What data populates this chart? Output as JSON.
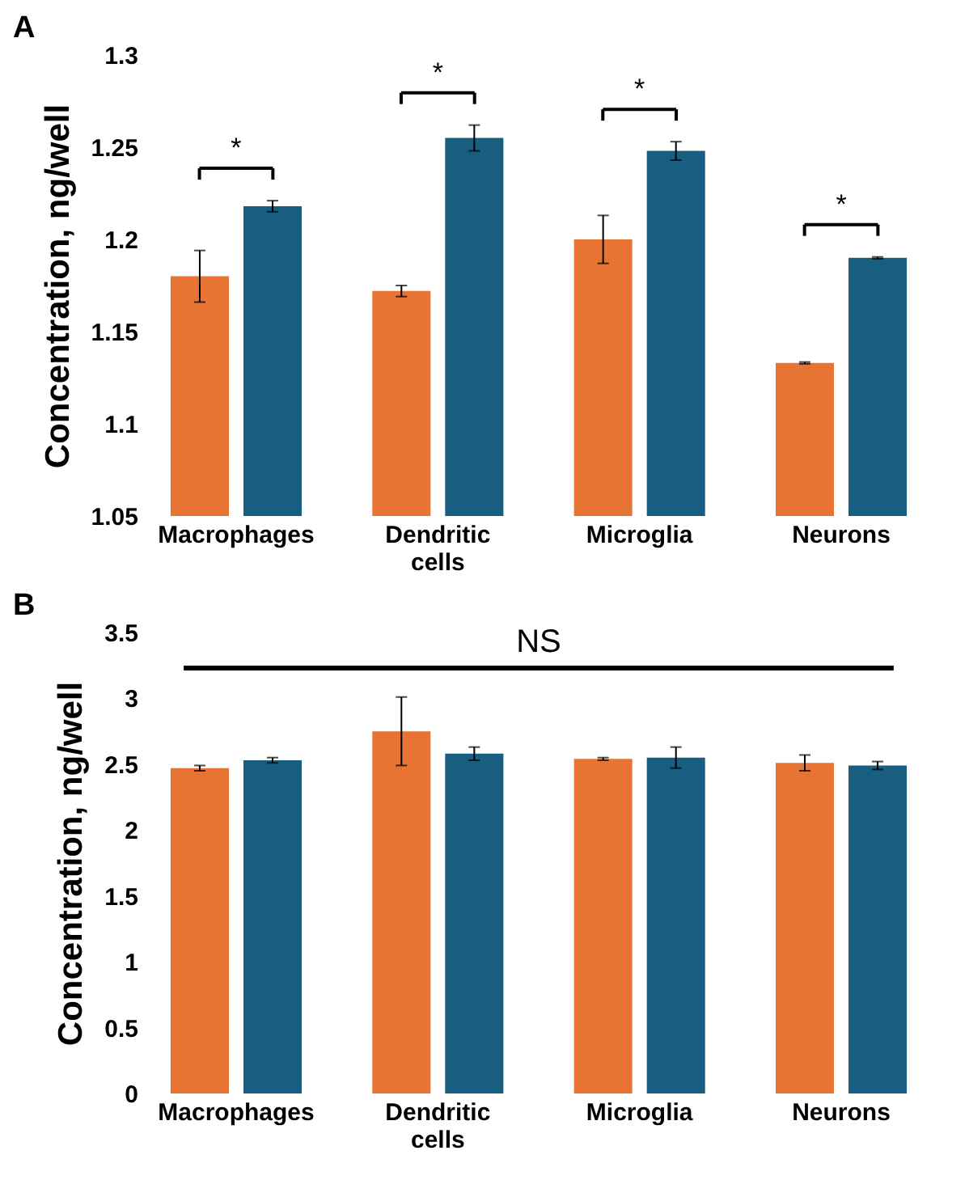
{
  "chart_data": [
    {
      "type": "bar",
      "title": "A",
      "ylabel": "Concentration, ng/well",
      "categories": [
        "Macrophages",
        "Dendritic cells",
        "Microglia",
        "Neurons"
      ],
      "series": [
        {
          "color": "#e87433",
          "values": [
            1.18,
            1.172,
            1.2,
            1.133
          ],
          "errors": [
            0.014,
            0.003,
            0.013,
            0.0005
          ]
        },
        {
          "color": "#175e81",
          "values": [
            1.218,
            1.255,
            1.248,
            1.19
          ],
          "errors": [
            0.003,
            0.007,
            0.005,
            0.0005
          ]
        }
      ],
      "ylim": [
        1.05,
        1.3
      ],
      "yticks": [
        1.05,
        1.1,
        1.15,
        1.2,
        1.25,
        1.3
      ],
      "grid": false,
      "legend": false,
      "annotations": [
        "*",
        "*",
        "*",
        "*"
      ]
    },
    {
      "type": "bar",
      "title": "B",
      "ylabel": "Concentration, ng/well",
      "categories": [
        "Macrophages",
        "Dendritic cells",
        "Microglia",
        "Neurons"
      ],
      "series": [
        {
          "color": "#e87433",
          "values": [
            2.47,
            2.75,
            2.54,
            2.51
          ],
          "errors": [
            0.02,
            0.26,
            0.01,
            0.06
          ]
        },
        {
          "color": "#175e81",
          "values": [
            2.53,
            2.58,
            2.55,
            2.49
          ],
          "errors": [
            0.02,
            0.05,
            0.08,
            0.03
          ]
        }
      ],
      "ylim": [
        0,
        3.5
      ],
      "yticks": [
        0,
        0.5,
        1,
        1.5,
        2,
        2.5,
        3,
        3.5
      ],
      "grid": false,
      "legend": false,
      "ref_lines": [
        {
          "axis": "y",
          "value": 3.23,
          "label": "NS",
          "color": "#000000"
        }
      ]
    }
  ]
}
